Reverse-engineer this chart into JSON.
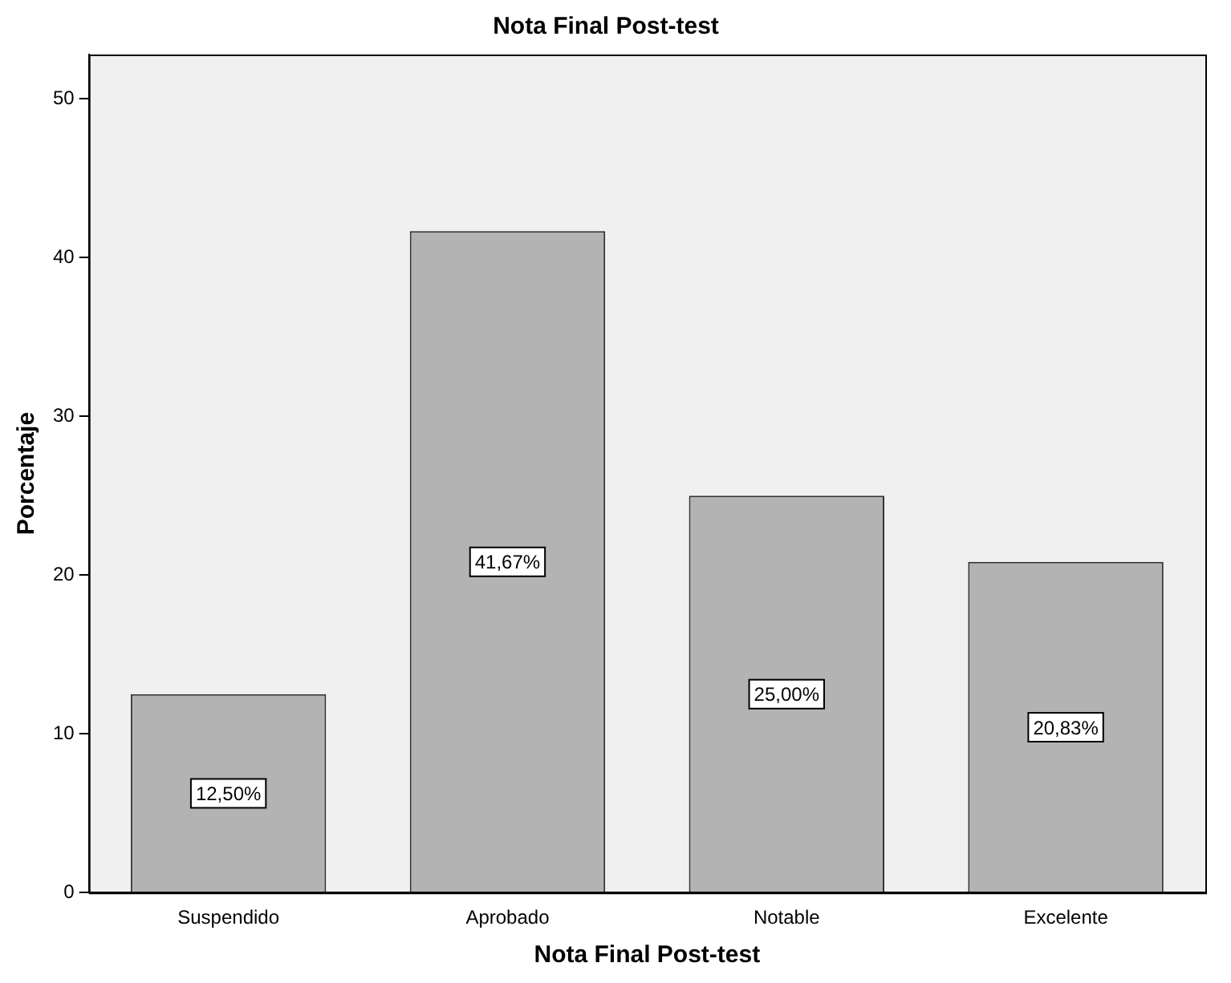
{
  "chart_data": {
    "type": "bar",
    "title": "Nota Final Post-test",
    "xlabel": "Nota Final Post-test",
    "ylabel": "Porcentaje",
    "categories": [
      "Suspendido",
      "Aprobado",
      "Notable",
      "Excelente"
    ],
    "values": [
      12.5,
      41.67,
      25,
      20.83
    ],
    "value_labels": [
      "12,50%",
      "41,67%",
      "25,00%",
      "20,83%"
    ],
    "color": "#b3b3b3",
    "ylim": [
      0,
      52.8
    ],
    "yticks": [
      0,
      10,
      20,
      30,
      40,
      50
    ],
    "grid": false,
    "legend": false
  }
}
